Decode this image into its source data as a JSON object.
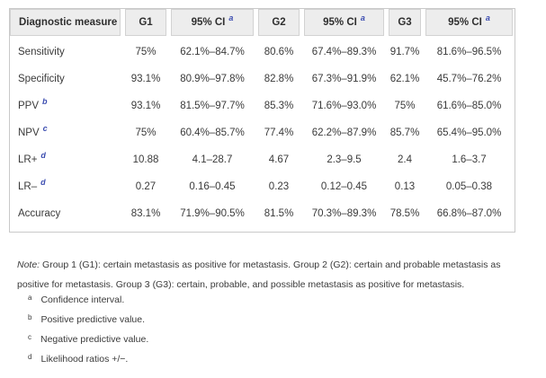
{
  "table": {
    "header": [
      {
        "label": "Diagnostic measure",
        "sup": ""
      },
      {
        "label": "G1",
        "sup": ""
      },
      {
        "label": "95% CI",
        "sup": "a"
      },
      {
        "label": "G2",
        "sup": ""
      },
      {
        "label": "95% CI",
        "sup": "a"
      },
      {
        "label": "G3",
        "sup": ""
      },
      {
        "label": "95% CI",
        "sup": "a"
      }
    ],
    "rows": [
      {
        "label": "Sensitivity",
        "sup": "",
        "values": [
          "75%",
          "62.1%–84.7%",
          "80.6%",
          "67.4%–89.3%",
          "91.7%",
          "81.6%–96.5%"
        ]
      },
      {
        "label": "Specificity",
        "sup": "",
        "values": [
          "93.1%",
          "80.9%–97.8%",
          "82.8%",
          "67.3%–91.9%",
          "62.1%",
          "45.7%–76.2%"
        ]
      },
      {
        "label": "PPV",
        "sup": "b",
        "values": [
          "93.1%",
          "81.5%–97.7%",
          "85.3%",
          "71.6%–93.0%",
          "75%",
          "61.6%–85.0%"
        ]
      },
      {
        "label": "NPV",
        "sup": "c",
        "values": [
          "75%",
          "60.4%–85.7%",
          "77.4%",
          "62.2%–87.9%",
          "85.7%",
          "65.4%–95.0%"
        ]
      },
      {
        "label": "LR+",
        "sup": "d",
        "values": [
          "10.88",
          "4.1–28.7",
          "4.67",
          "2.3–9.5",
          "2.4",
          "1.6–3.7"
        ]
      },
      {
        "label": "LR–",
        "sup": "d",
        "values": [
          "0.27",
          "0.16–0.45",
          "0.23",
          "0.12–0.45",
          "0.13",
          "0.05–0.38"
        ]
      },
      {
        "label": "Accuracy",
        "sup": "",
        "values": [
          "83.1%",
          "71.9%–90.5%",
          "81.5%",
          "70.3%–89.3%",
          "78.5%",
          "66.8%–87.0%"
        ]
      }
    ]
  },
  "note": {
    "prefix": "Note:",
    "text": " Group 1 (G1): certain metastasis as positive for metastasis. Group 2 (G2): certain and probable metastasis as positive for metastasis. Group 3 (G3): certain, probable, and possible metastasis as positive for metastasis."
  },
  "footnotes": [
    {
      "marker": "a",
      "text": "Confidence interval."
    },
    {
      "marker": "b",
      "text": "Positive predictive value."
    },
    {
      "marker": "c",
      "text": "Negative predictive value."
    },
    {
      "marker": "d",
      "text": "Likelihood ratios +/−."
    }
  ],
  "colors": {
    "header_bg": "#ededed",
    "table_border": "#c9c9c9",
    "superscript_blue": "#3c4db0",
    "text": "#3a3a3a"
  }
}
